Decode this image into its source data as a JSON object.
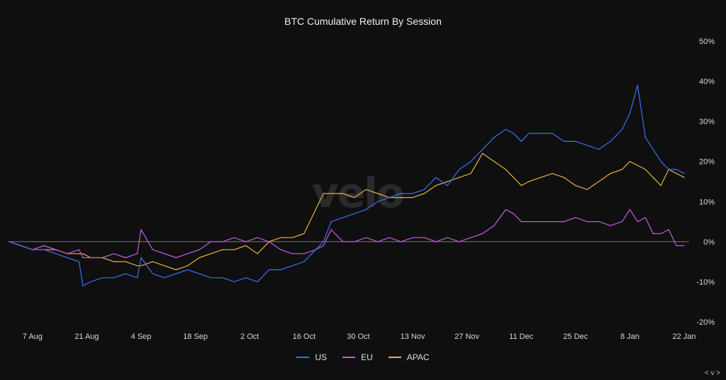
{
  "chart_data": {
    "type": "line",
    "title": "BTC Cumulative Return By Session",
    "xlabel": "",
    "ylabel": "",
    "y_unit": "%",
    "ylim": [
      -20,
      50
    ],
    "y_ticks": [
      "50%",
      "40%",
      "30%",
      "20%",
      "10%",
      "0%",
      "-10%",
      "-20%"
    ],
    "y_tick_values": [
      50,
      40,
      30,
      20,
      10,
      0,
      -10,
      -20
    ],
    "x_ticks": [
      "7 Aug",
      "21 Aug",
      "4 Sep",
      "18 Sep",
      "2 Oct",
      "16 Oct",
      "30 Oct",
      "13 Nov",
      "27 Nov",
      "11 Dec",
      "25 Dec",
      "8 Jan",
      "22 Jan"
    ],
    "x_tick_days": [
      7,
      21,
      35,
      49,
      63,
      77,
      91,
      105,
      119,
      133,
      147,
      161,
      175
    ],
    "x_unit": "days since 1 Aug (shared x axis)",
    "x": [
      1,
      4,
      7,
      10,
      13,
      16,
      19,
      20,
      22,
      25,
      28,
      31,
      34,
      35,
      38,
      41,
      44,
      47,
      50,
      53,
      56,
      59,
      62,
      65,
      68,
      71,
      74,
      77,
      80,
      82,
      84,
      87,
      90,
      93,
      96,
      99,
      102,
      105,
      108,
      111,
      114,
      117,
      120,
      123,
      126,
      129,
      131,
      133,
      135,
      138,
      141,
      144,
      147,
      150,
      153,
      156,
      159,
      161,
      163,
      165,
      167,
      169,
      171,
      173,
      175
    ],
    "series": [
      {
        "name": "US",
        "color": "#3a6ff0",
        "values": [
          0,
          -1,
          -2,
          -2,
          -3,
          -4,
          -5,
          -11,
          -10,
          -9,
          -9,
          -8,
          -9,
          -4,
          -8,
          -9,
          -8,
          -7,
          -8,
          -9,
          -9,
          -10,
          -9,
          -10,
          -7,
          -7,
          -6,
          -5,
          -2,
          0,
          5,
          6,
          7,
          8,
          10,
          11,
          12,
          12,
          13,
          16,
          14,
          18,
          20,
          23,
          26,
          28,
          27,
          25,
          27,
          27,
          27,
          25,
          25,
          24,
          23,
          25,
          28,
          32,
          39,
          26,
          23,
          20,
          18,
          18,
          17
        ]
      },
      {
        "name": "EU",
        "color": "#c45be0",
        "values": [
          0,
          -1,
          -2,
          -1,
          -2,
          -3,
          -2,
          -4,
          -4,
          -4,
          -3,
          -4,
          -3,
          3,
          -2,
          -3,
          -4,
          -3,
          -2,
          0,
          0,
          1,
          0,
          1,
          0,
          -2,
          -3,
          -3,
          -2,
          -1,
          3,
          0,
          0,
          1,
          0,
          1,
          0,
          1,
          1,
          0,
          1,
          0,
          1,
          2,
          4,
          8,
          7,
          5,
          5,
          5,
          5,
          5,
          6,
          5,
          5,
          4,
          5,
          8,
          5,
          6,
          2,
          2,
          3,
          -1,
          -1
        ]
      },
      {
        "name": "APAC",
        "color": "#e3b33a",
        "values": [
          0,
          -1,
          -2,
          -2,
          -2,
          -3,
          -3,
          -3,
          -4,
          -4,
          -5,
          -5,
          -6,
          -6,
          -5,
          -6,
          -7,
          -6,
          -4,
          -3,
          -2,
          -2,
          -1,
          -3,
          0,
          1,
          1,
          2,
          8,
          12,
          12,
          12,
          11,
          13,
          12,
          11,
          11,
          11,
          12,
          14,
          15,
          16,
          17,
          22,
          20,
          18,
          16,
          14,
          15,
          16,
          17,
          16,
          14,
          13,
          15,
          17,
          18,
          20,
          19,
          18,
          16,
          14,
          18,
          17,
          16
        ]
      }
    ],
    "legend": [
      "US",
      "EU",
      "APAC"
    ],
    "legend_position": "bottom-center",
    "grid": false,
    "zero_line": true
  },
  "watermark": "velo",
  "footer": {
    "corner": "< v >"
  }
}
